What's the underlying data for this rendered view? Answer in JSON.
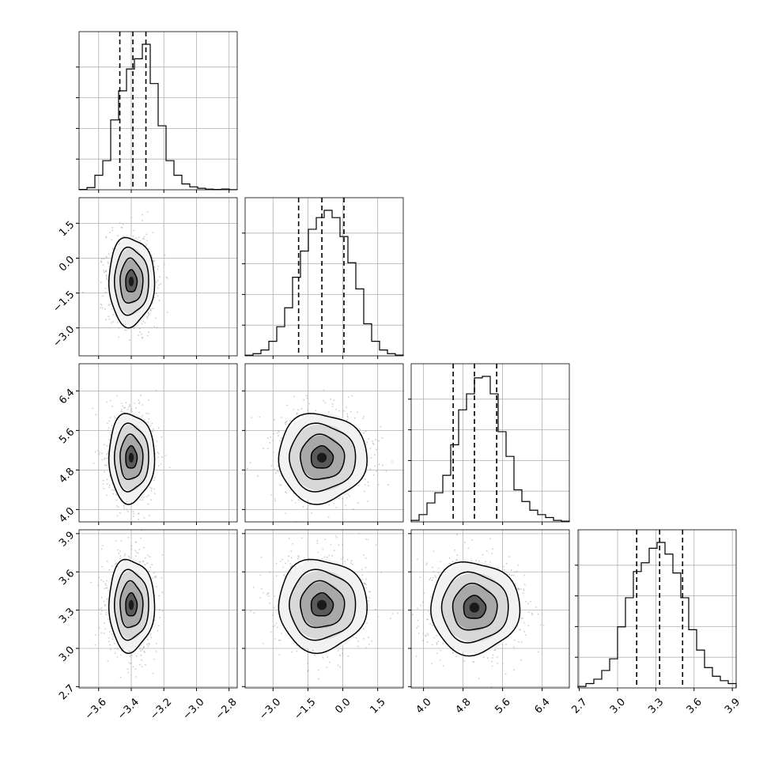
{
  "colors": {
    "axis": "#000000",
    "grid": "#b0b0b0",
    "scatter": "#a0a0a0",
    "contour": "#000000",
    "background": "#ffffff"
  },
  "chart_data": {
    "type": "corner",
    "grid": true,
    "parameters": [
      {
        "ticks": [
          -3.6,
          -3.4,
          -3.2,
          -3.0,
          -2.8
        ],
        "tick_labels": [
          "−3.6",
          "−3.4",
          "−3.2",
          "−3.0",
          "−2.8"
        ],
        "range": [
          -3.72,
          -2.75
        ],
        "mean": -3.4,
        "sd": 0.07,
        "quantiles": [
          -3.47,
          -3.39,
          -3.31
        ]
      },
      {
        "ticks": [
          -3.0,
          -1.5,
          0.0,
          1.5
        ],
        "tick_labels": [
          "−3.0",
          "−1.5",
          "0.0",
          "1.5"
        ],
        "range": [
          -4.2,
          2.6
        ],
        "mean": -0.9,
        "sd": 0.95,
        "quantiles": [
          -1.9,
          -0.9,
          0.05
        ]
      },
      {
        "ticks": [
          4.0,
          4.8,
          5.6,
          6.4
        ],
        "tick_labels": [
          "4.0",
          "4.8",
          "5.6",
          "6.4"
        ],
        "range": [
          3.75,
          6.95
        ],
        "mean": 5.05,
        "sd": 0.45,
        "quantiles": [
          4.6,
          5.03,
          5.48
        ]
      },
      {
        "ticks": [
          2.7,
          3.0,
          3.3,
          3.6,
          3.9
        ],
        "tick_labels": [
          "2.7",
          "3.0",
          "3.3",
          "3.6",
          "3.9"
        ],
        "range": [
          2.69,
          3.93
        ],
        "mean": 3.34,
        "sd": 0.18,
        "quantiles": [
          3.15,
          3.33,
          3.51
        ]
      }
    ],
    "histograms": [
      {
        "param": 0,
        "counts": [
          0.002,
          0.015,
          0.1,
          0.2,
          0.48,
          0.68,
          0.83,
          0.9,
          1.0,
          0.73,
          0.44,
          0.2,
          0.1,
          0.04,
          0.02,
          0.01,
          0.004,
          0.002,
          0.005,
          0.001
        ]
      },
      {
        "param": 1,
        "counts": [
          0.004,
          0.015,
          0.04,
          0.1,
          0.2,
          0.33,
          0.54,
          0.72,
          0.87,
          0.95,
          1.0,
          0.95,
          0.82,
          0.64,
          0.46,
          0.22,
          0.1,
          0.04,
          0.015,
          0.005
        ]
      },
      {
        "param": 2,
        "counts": [
          0.01,
          0.05,
          0.13,
          0.2,
          0.32,
          0.53,
          0.77,
          0.88,
          0.99,
          1.0,
          0.88,
          0.62,
          0.45,
          0.22,
          0.14,
          0.08,
          0.05,
          0.03,
          0.01,
          0.005
        ]
      },
      {
        "param": 3,
        "counts": [
          0.01,
          0.03,
          0.06,
          0.12,
          0.2,
          0.42,
          0.62,
          0.8,
          0.86,
          0.96,
          1.0,
          0.92,
          0.79,
          0.62,
          0.4,
          0.26,
          0.14,
          0.08,
          0.05,
          0.03
        ]
      }
    ],
    "pairs": [
      {
        "x": 0,
        "y": 1,
        "center": [
          -3.4,
          -1.0
        ],
        "sigma": [
          0.07,
          0.95
        ]
      },
      {
        "x": 0,
        "y": 2,
        "center": [
          -3.4,
          5.05
        ],
        "sigma": [
          0.07,
          0.45
        ]
      },
      {
        "x": 1,
        "y": 2,
        "center": [
          -0.9,
          5.05
        ],
        "sigma": [
          0.95,
          0.45
        ]
      },
      {
        "x": 0,
        "y": 3,
        "center": [
          -3.4,
          3.34
        ],
        "sigma": [
          0.07,
          0.18
        ]
      },
      {
        "x": 1,
        "y": 3,
        "center": [
          -0.9,
          3.34
        ],
        "sigma": [
          0.95,
          0.18
        ]
      },
      {
        "x": 2,
        "y": 3,
        "center": [
          5.03,
          3.32
        ],
        "sigma": [
          0.45,
          0.18
        ]
      }
    ],
    "contour_levels_sigma": [
      0.5,
      1.0,
      1.5,
      2.0
    ]
  }
}
